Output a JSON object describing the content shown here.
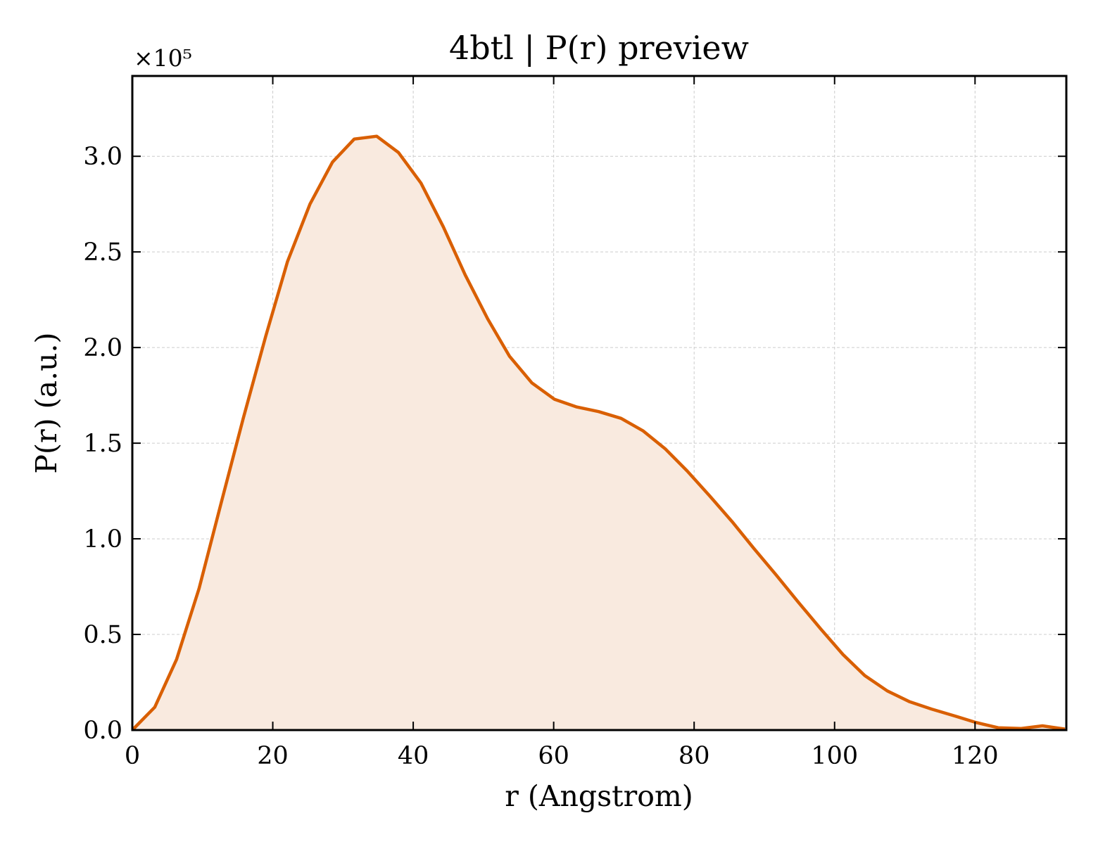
{
  "chart_data": {
    "type": "area",
    "title": "4btl | P(r) preview",
    "xlabel": "r (Angstrom)",
    "ylabel": "P(r) (a.u.)",
    "y_offset_label": "×10⁵",
    "xlim": [
      0,
      133
    ],
    "ylim": [
      0,
      3.42
    ],
    "x_ticks": [
      0,
      20,
      40,
      60,
      80,
      100,
      120
    ],
    "y_ticks": [
      0.0,
      0.5,
      1.0,
      1.5,
      2.0,
      2.5,
      3.0
    ],
    "x_tick_labels": [
      "0",
      "20",
      "40",
      "60",
      "80",
      "100",
      "120"
    ],
    "y_tick_labels": [
      "0.0",
      "0.5",
      "1.0",
      "1.5",
      "2.0",
      "2.5",
      "3.0"
    ],
    "grid": true,
    "line_color": "#d95f02",
    "fill_color": "#f9eadf",
    "series": [
      {
        "x": [
          0,
          3.2,
          6.3,
          9.5,
          12.6,
          15.8,
          19.0,
          22.1,
          25.3,
          28.5,
          31.6,
          34.8,
          37.9,
          41.1,
          44.3,
          47.4,
          50.6,
          53.7,
          56.9,
          60.1,
          63.2,
          66.4,
          69.6,
          72.7,
          75.9,
          79.0,
          82.2,
          85.4,
          88.5,
          91.7,
          94.8,
          98.0,
          101.2,
          104.3,
          107.5,
          110.7,
          113.8,
          117.0,
          120.1,
          123.3,
          126.5,
          129.6,
          132.8
        ],
        "y": [
          0.0,
          0.12,
          0.37,
          0.74,
          1.18,
          1.63,
          2.06,
          2.45,
          2.75,
          2.97,
          3.09,
          3.105,
          3.02,
          2.86,
          2.63,
          2.38,
          2.15,
          1.955,
          1.815,
          1.73,
          1.69,
          1.665,
          1.63,
          1.565,
          1.47,
          1.355,
          1.225,
          1.09,
          0.95,
          0.81,
          0.67,
          0.53,
          0.395,
          0.285,
          0.205,
          0.148,
          0.11,
          0.075,
          0.04,
          0.012,
          0.008,
          0.022,
          0.005
        ]
      }
    ]
  }
}
